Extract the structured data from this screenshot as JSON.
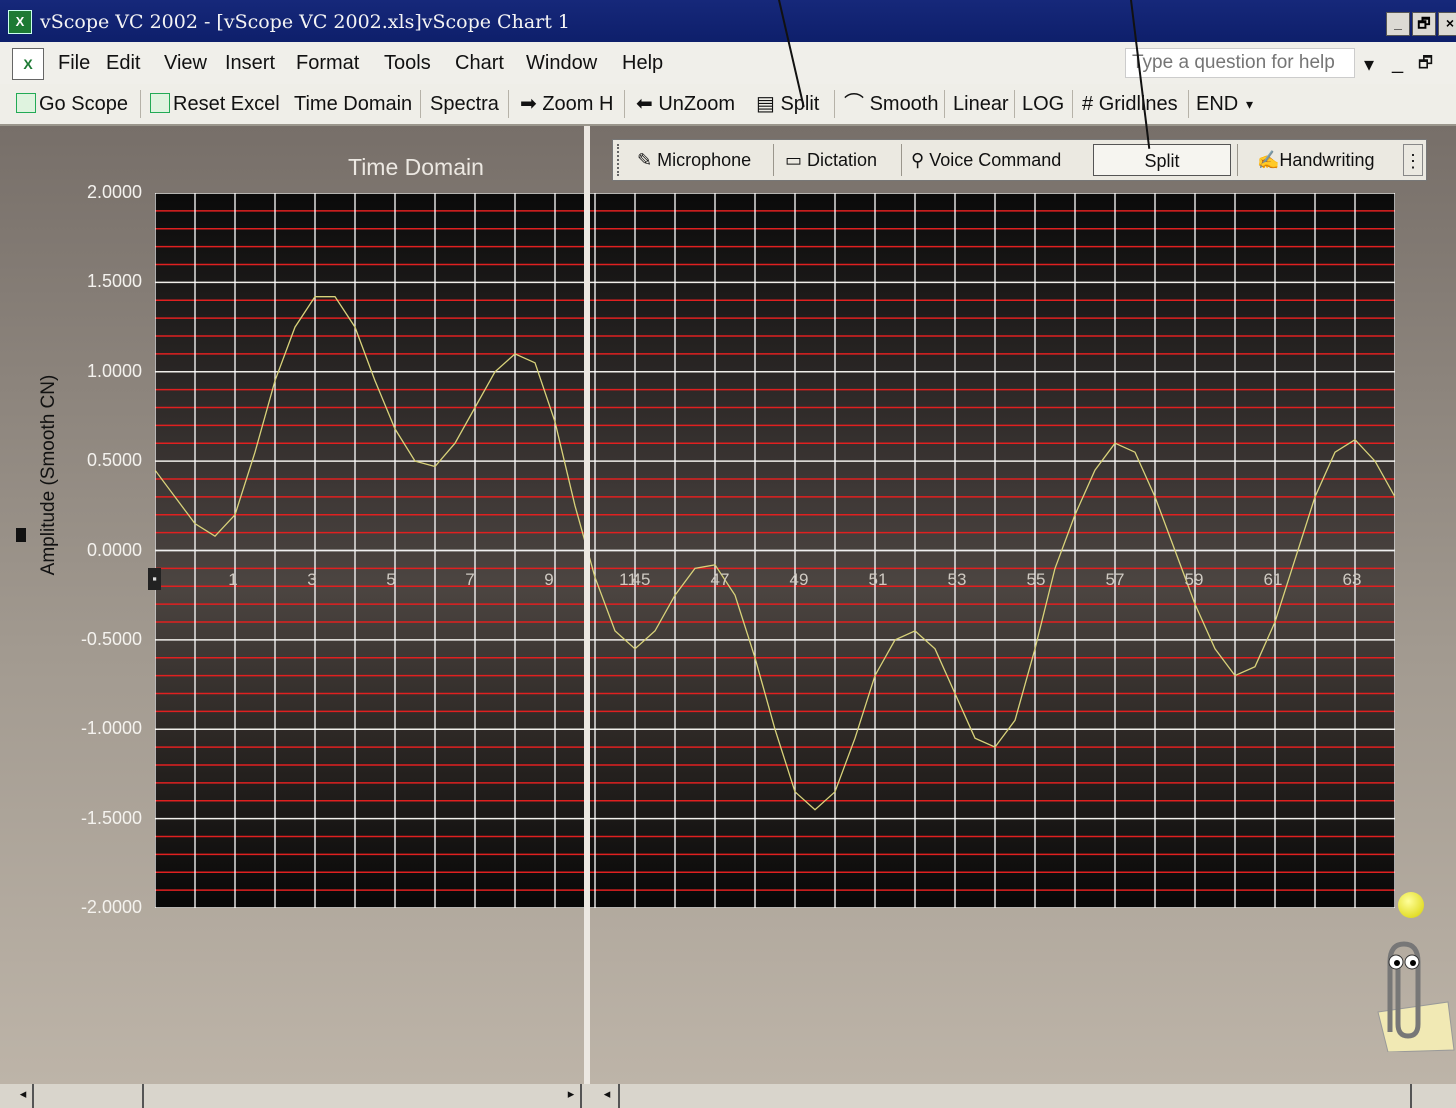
{
  "window": {
    "app_icon": "excel-app-icon",
    "title": "vScope VC 2002 - [vScope VC 2002.xls]vScope Chart 1",
    "controls": [
      "_",
      "🗗",
      "×"
    ]
  },
  "menubar": {
    "doc_icon": "excel-doc-icon",
    "items": [
      "File",
      "Edit",
      "View",
      "Insert",
      "Format",
      "Tools",
      "Chart",
      "Window",
      "Help"
    ],
    "help_placeholder": "Type a question for help",
    "right_controls": [
      "▾",
      "_",
      "🗗"
    ]
  },
  "toolbar": {
    "items": [
      "Go Scope",
      "Reset Excel",
      "Time Domain",
      "Spectra",
      "Zoom H",
      "UnZoom",
      "Split",
      "Smooth",
      "Linear",
      "LOG",
      "Gridlines",
      "END"
    ],
    "icons": {
      "go_scope": "scope-icon",
      "reset_excel": "excel-icon",
      "zoom": "arrow-right-icon",
      "unzoom": "arrow-left-icon",
      "split": "split-icon",
      "smooth": "smooth-icon",
      "gridlines": "grid-icon"
    }
  },
  "language_bar": {
    "items": [
      "Microphone",
      "Dictation",
      "Voice Command",
      "Split",
      "Handwriting"
    ],
    "pressed": "Split",
    "icons": {
      "microphone": "microphone-icon",
      "dictation": "dictation-icon",
      "voice_command": "voice-command-icon",
      "handwriting": "handwriting-icon"
    }
  },
  "chart_data": {
    "type": "line",
    "title": "Time Domain",
    "ylabel": "Amplitude (Smooth CN)",
    "xlabel": "",
    "ylim": [
      -2.0,
      2.0
    ],
    "yticks": [
      "2.0000",
      "1.5000",
      "1.0000",
      "0.5000",
      "0.0000",
      "-0.5000",
      "-1.0000",
      "-1.5000",
      "-2.0000"
    ],
    "xtick_labels_left": [
      "1",
      "3",
      "5",
      "7",
      "9",
      "11"
    ],
    "xtick_labels_right": [
      "45",
      "47",
      "49",
      "51",
      "53",
      "55",
      "57",
      "59",
      "61",
      "63"
    ],
    "x_axis_crosses_at": -0.15,
    "grid": true,
    "gridline_colors": {
      "vertical": "#ffffff",
      "horizontal": "#e02020"
    },
    "split_view": true,
    "series": [
      {
        "color": "#d8d27a",
        "x": [
          0,
          1,
          2,
          3,
          4,
          5,
          6,
          7,
          8,
          9,
          10,
          11,
          12,
          13,
          14,
          15,
          16,
          17,
          18,
          19,
          20,
          21,
          22,
          23,
          24,
          25,
          26,
          27,
          28,
          29,
          30,
          31,
          32,
          33,
          34,
          35,
          36,
          37,
          38,
          39,
          40,
          41,
          42,
          43,
          44,
          45,
          46,
          47,
          48,
          49,
          50,
          51,
          52,
          53,
          54,
          55,
          56,
          57,
          58,
          59,
          60,
          61,
          62
        ],
        "y": [
          0.45,
          0.3,
          0.15,
          0.08,
          0.2,
          0.55,
          0.95,
          1.25,
          1.42,
          1.42,
          1.25,
          0.95,
          0.68,
          0.5,
          0.47,
          0.6,
          0.8,
          1.0,
          1.1,
          1.05,
          0.72,
          0.25,
          -0.15,
          -0.45,
          -0.55,
          -0.45,
          -0.25,
          -0.1,
          -0.08,
          -0.25,
          -0.6,
          -1.0,
          -1.35,
          -1.45,
          -1.35,
          -1.05,
          -0.7,
          -0.5,
          -0.45,
          -0.55,
          -0.8,
          -1.05,
          -1.1,
          -0.95,
          -0.55,
          -0.1,
          0.2,
          0.45,
          0.6,
          0.55,
          0.3,
          0.0,
          -0.3,
          -0.55,
          -0.7,
          -0.65,
          -0.4,
          -0.05,
          0.3,
          0.55,
          0.62,
          0.5,
          0.3
        ]
      }
    ]
  },
  "scrollbars": {
    "left_arrow": "◂",
    "right_arrow": "▸"
  }
}
